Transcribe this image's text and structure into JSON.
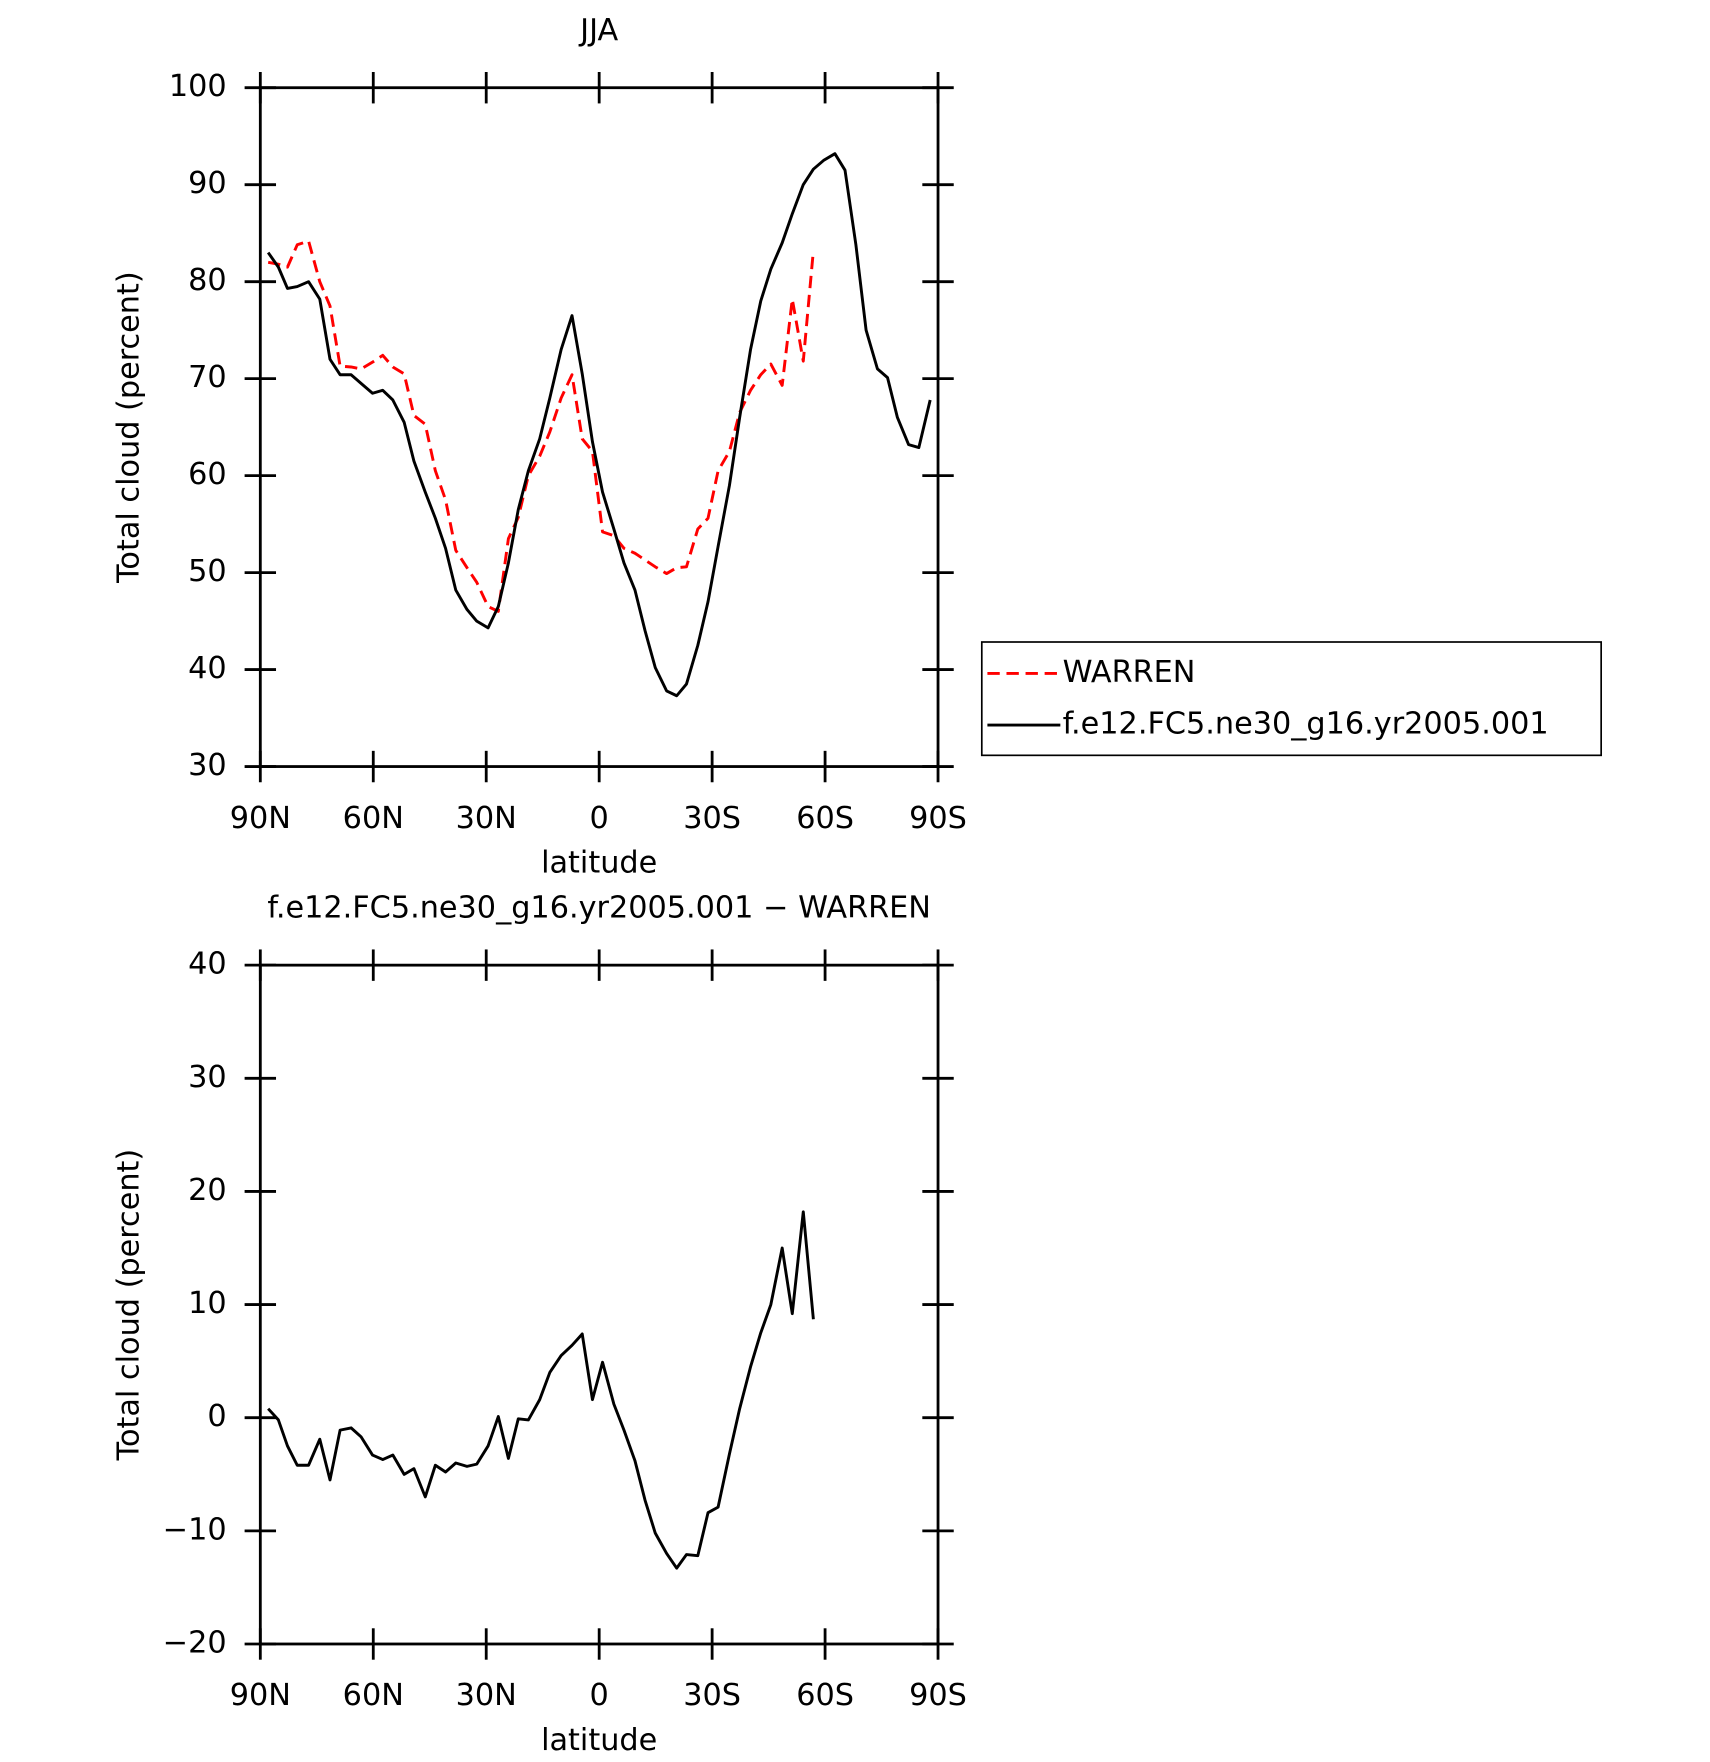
{
  "chart_data": [
    {
      "type": "line",
      "title": "JJA",
      "x_label": "latitude",
      "y_label": "Total cloud (percent)",
      "xlim": [
        90,
        -90
      ],
      "xticks": [
        {
          "value": 90,
          "label": "90N"
        },
        {
          "value": 60,
          "label": "60N"
        },
        {
          "value": 30,
          "label": "30N"
        },
        0,
        {
          "value": -30,
          "label": "30S"
        },
        {
          "value": -60,
          "label": "60S"
        },
        {
          "value": -90,
          "label": "90S"
        }
      ],
      "ylim": [
        30,
        100
      ],
      "yticks": [
        30,
        40,
        50,
        60,
        70,
        80,
        90,
        100
      ],
      "legend_position": "right",
      "x": [
        87.9,
        85.2,
        82.8,
        80.2,
        77.2,
        74.2,
        71.5,
        68.8,
        65.9,
        63.2,
        60.2,
        57.5,
        54.8,
        51.8,
        49.2,
        46.2,
        43.5,
        40.8,
        38.1,
        35.1,
        32.5,
        29.5,
        26.8,
        24.1,
        21.5,
        18.8,
        15.8,
        13.1,
        10.1,
        7.2,
        4.5,
        1.8,
        -0.9,
        -3.9,
        -6.6,
        -9.5,
        -12.2,
        -14.9,
        -17.9,
        -20.6,
        -23.2,
        -26.2,
        -28.9,
        -31.6,
        -34.6,
        -37.3,
        -40.2,
        -42.9,
        -45.6,
        -48.6,
        -51.3,
        -54.2,
        -56.9,
        -59.6,
        -62.6,
        -65.3,
        -68.2,
        -70.9,
        -73.9,
        -76.6,
        -79.2,
        -82.2,
        -84.9,
        -87.9
      ],
      "series": [
        {
          "name": "WARREN",
          "color": "#ff0000",
          "dash": "dashed",
          "values": [
            82,
            81.8,
            81.5,
            83.8,
            84.2,
            80,
            77.5,
            71.3,
            71.2,
            71,
            71.7,
            72.4,
            71.2,
            70.5,
            66.2,
            65.3,
            60.5,
            57.5,
            52.3,
            50.5,
            49,
            46.5,
            46,
            53.5,
            55.7,
            60,
            62,
            64.5,
            68,
            70.4,
            63.8,
            62.5,
            54.2,
            53.8,
            52.5,
            52,
            51.3,
            50.6,
            49.9,
            50.5,
            50.6,
            54.5,
            55.6,
            60.5,
            62.5,
            66.5,
            68.8,
            70.4,
            71.5,
            69.3,
            78.2,
            71.8,
            83.2,
            null,
            null,
            null,
            null,
            null,
            null,
            null,
            null,
            null,
            null,
            null
          ]
        },
        {
          "name": "f.e12.FC5.ne30_g16.yr2005.001",
          "color": "#000000",
          "dash": "solid",
          "values": [
            83,
            81.5,
            79.3,
            79.5,
            80,
            78.2,
            72,
            70.4,
            70.4,
            69.5,
            68.5,
            68.8,
            67.8,
            65.5,
            61.5,
            58.3,
            55.6,
            52.5,
            48.2,
            46.2,
            45,
            44.3,
            46.5,
            51,
            56.5,
            60.5,
            63.8,
            68,
            73,
            76.5,
            70.5,
            63.5,
            58.3,
            54.5,
            51,
            48.2,
            44,
            40.2,
            37.8,
            37.3,
            38.5,
            42.5,
            47,
            52.7,
            59,
            66,
            73,
            78,
            81.3,
            84,
            87,
            90,
            91.6,
            92.5,
            93.2,
            91.5,
            83.8,
            75,
            71,
            70.1,
            66,
            63.2,
            62.9,
            67.8
          ]
        }
      ]
    },
    {
      "type": "line",
      "title": "f.e12.FC5.ne30_g16.yr2005.001 − WARREN",
      "x_label": "latitude",
      "y_label": "Total cloud (percent)",
      "xlim": [
        90,
        -90
      ],
      "xticks": [
        {
          "value": 90,
          "label": "90N"
        },
        {
          "value": 60,
          "label": "60N"
        },
        {
          "value": 30,
          "label": "30N"
        },
        0,
        {
          "value": -30,
          "label": "30S"
        },
        {
          "value": -60,
          "label": "60S"
        },
        {
          "value": -90,
          "label": "90S"
        }
      ],
      "ylim": [
        -20,
        40
      ],
      "yticks": [
        {
          "value": -20,
          "label": "−20"
        },
        {
          "value": -10,
          "label": "−10"
        },
        0,
        10,
        20,
        30,
        40
      ],
      "x": [
        87.9,
        85.2,
        82.8,
        80.2,
        77.2,
        74.2,
        71.5,
        68.8,
        65.9,
        63.2,
        60.2,
        57.5,
        54.8,
        51.8,
        49.2,
        46.2,
        43.5,
        40.8,
        38.1,
        35.1,
        32.5,
        29.5,
        26.8,
        24.1,
        21.5,
        18.8,
        15.8,
        13.1,
        10.1,
        7.2,
        4.5,
        1.8,
        -0.9,
        -3.9,
        -6.6,
        -9.5,
        -12.2,
        -14.9,
        -17.9,
        -20.6,
        -23.2,
        -26.2,
        -28.9,
        -31.6,
        -34.6,
        -37.3,
        -40.2,
        -42.9,
        -45.6,
        -48.6,
        -51.3,
        -54.2,
        -56.9
      ],
      "color": "#000000",
      "values": [
        0.8,
        -0.2,
        -2.5,
        -4.2,
        -4.2,
        -1.9,
        -5.5,
        -1.1,
        -0.9,
        -1.7,
        -3.3,
        -3.7,
        -3.3,
        -5,
        -4.5,
        -7,
        -4.2,
        -4.8,
        -4,
        -4.3,
        -4.1,
        -2.5,
        0.1,
        -3.6,
        -0.1,
        -0.2,
        1.6,
        4,
        5.5,
        6.4,
        7.4,
        1.6,
        4.9,
        1.2,
        -1.1,
        -3.8,
        -7.3,
        -10.2,
        -12,
        -13.3,
        -12.1,
        -12.2,
        -8.4,
        -7.9,
        -3.2,
        0.8,
        4.5,
        7.5,
        10,
        15,
        9.2,
        18.2,
        8.7
      ]
    }
  ]
}
